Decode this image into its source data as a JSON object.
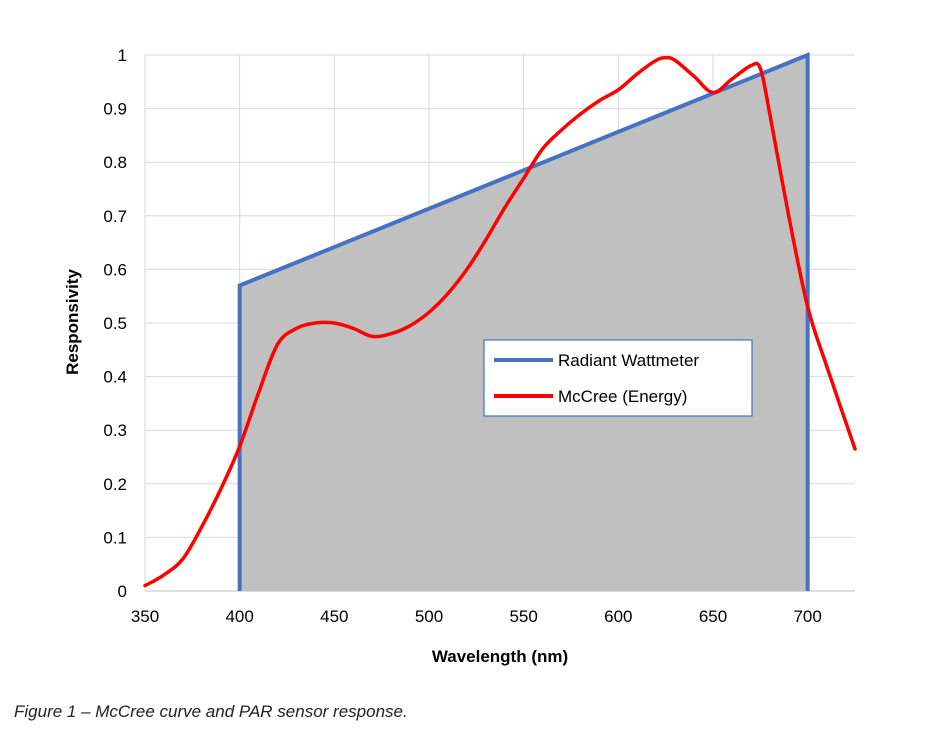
{
  "chart_data": {
    "type": "area",
    "xlabel": "Wavelength (nm)",
    "ylabel": "Responsivity",
    "xlim": [
      350,
      725
    ],
    "ylim": [
      0,
      1
    ],
    "xticks": [
      350,
      400,
      450,
      500,
      550,
      600,
      650,
      700
    ],
    "yticks": [
      0,
      0.1,
      0.2,
      0.3,
      0.4,
      0.5,
      0.6,
      0.7,
      0.8,
      0.9,
      1
    ],
    "grid": true,
    "legend_position": "center-right",
    "series": [
      {
        "name": "Radiant Wattmeter",
        "color": "#4472C4",
        "fill": "#C0C0C0",
        "x": [
          400,
          400,
          700,
          700
        ],
        "y": [
          0,
          0.57,
          1.0,
          0
        ]
      },
      {
        "name": "McCree (Energy)",
        "color": "#FF0000",
        "x": [
          350,
          360,
          370,
          380,
          390,
          400,
          410,
          420,
          430,
          440,
          450,
          460,
          470,
          480,
          490,
          500,
          510,
          520,
          530,
          540,
          550,
          560,
          570,
          580,
          590,
          600,
          610,
          620,
          625,
          630,
          640,
          650,
          660,
          670,
          675,
          680,
          690,
          700,
          710,
          725
        ],
        "y": [
          0.01,
          0.03,
          0.06,
          0.12,
          0.19,
          0.27,
          0.37,
          0.46,
          0.49,
          0.5,
          0.5,
          0.49,
          0.475,
          0.48,
          0.495,
          0.52,
          0.555,
          0.6,
          0.655,
          0.715,
          0.77,
          0.825,
          0.86,
          0.89,
          0.915,
          0.935,
          0.965,
          0.99,
          0.995,
          0.99,
          0.96,
          0.93,
          0.955,
          0.98,
          0.975,
          0.89,
          0.7,
          0.53,
          0.42,
          0.265
        ]
      }
    ]
  },
  "caption": "Figure 1 – McCree curve and PAR sensor response."
}
